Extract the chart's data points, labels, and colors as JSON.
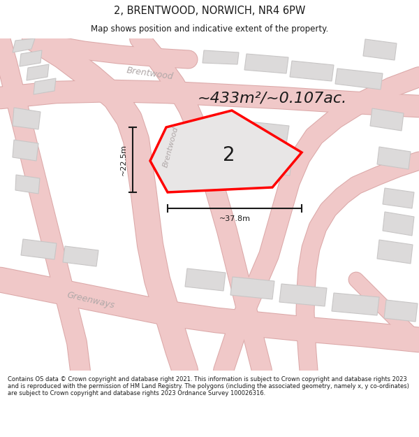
{
  "title": "2, BRENTWOOD, NORWICH, NR4 6PW",
  "subtitle": "Map shows position and indicative extent of the property.",
  "area_text": "~433m²/~0.107ac.",
  "label_2": "2",
  "dim_vertical": "~22.5m",
  "dim_horizontal": "~37.8m",
  "street_brentwood_top": "Brentwood",
  "street_brentwood_mid": "Brentwood",
  "street_greenways": "Greenways",
  "footer": "Contains OS data © Crown copyright and database right 2021. This information is subject to Crown copyright and database rights 2023 and is reproduced with the permission of HM Land Registry. The polygons (including the associated geometry, namely x, y co-ordinates) are subject to Crown copyright and database rights 2023 Ordnance Survey 100026316.",
  "bg_color": "#f2f0f0",
  "map_bg": "#f2f0f0",
  "road_color": "#f0c8c8",
  "road_outline": "#dba8a8",
  "building_color": "#dcdada",
  "building_outline": "#c8c6c6",
  "plot_fill": "#e8e6e6",
  "plot_outline": "#ff0000",
  "text_color": "#1a1a1a",
  "dim_color": "#1a1a1a",
  "street_label_color": "#b0a8a8",
  "white": "#ffffff"
}
